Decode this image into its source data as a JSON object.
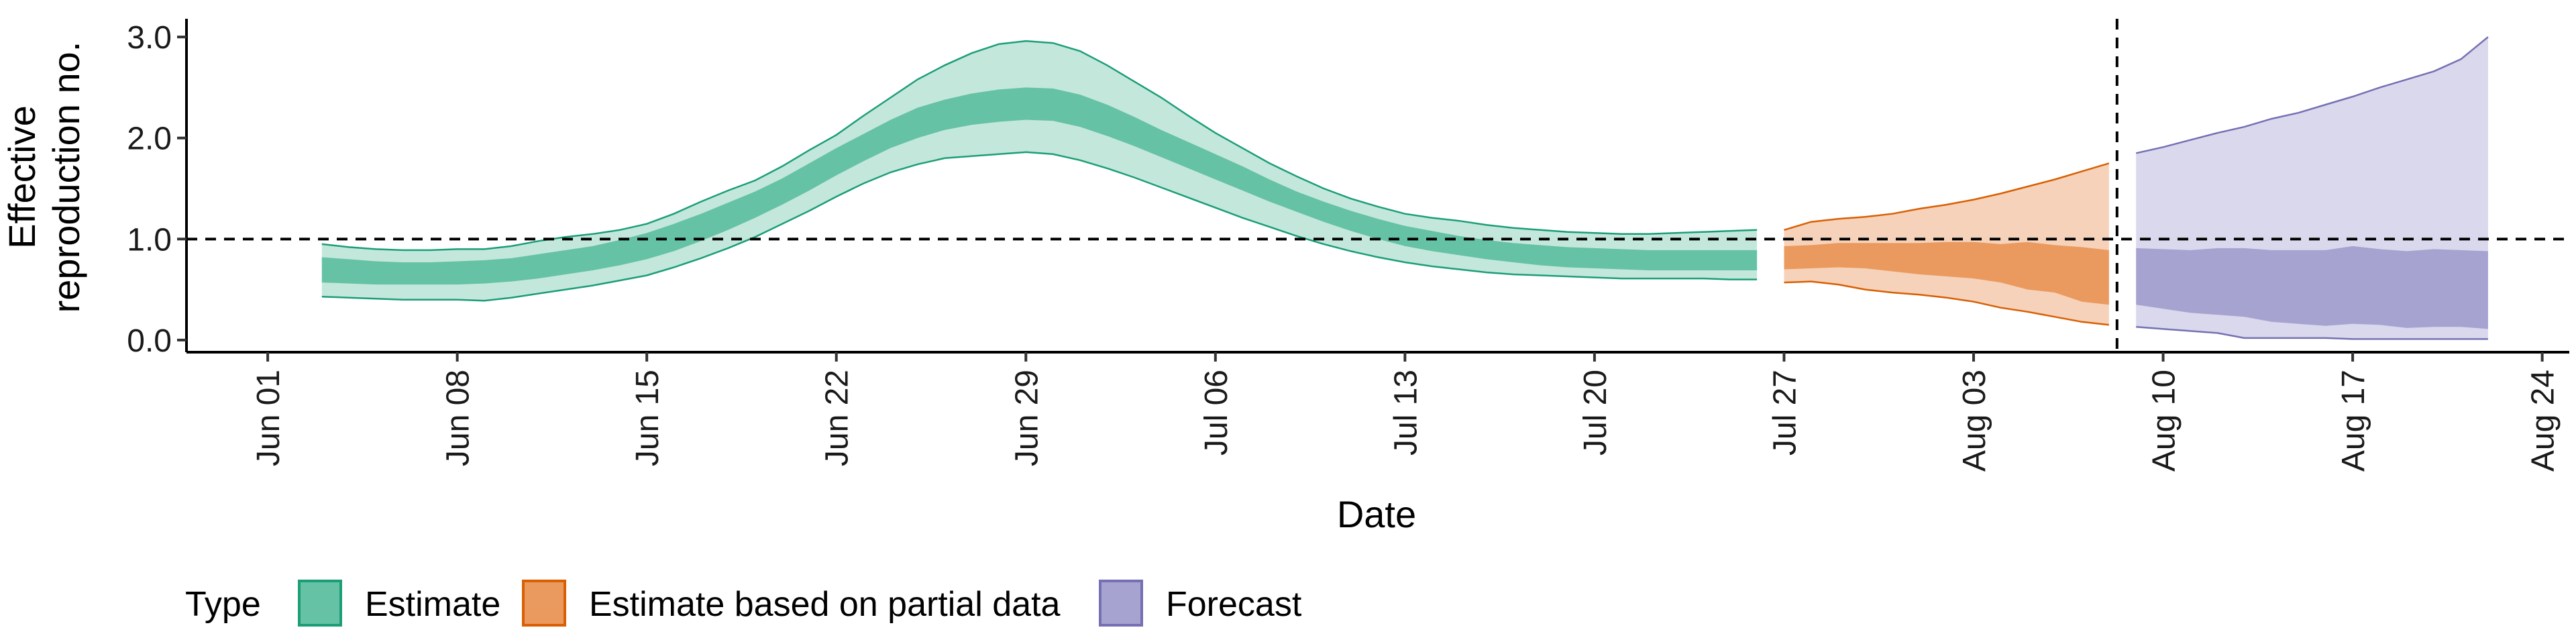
{
  "chart_data": {
    "type": "area",
    "xlabel": "Date",
    "ylabel_lines": [
      "Effective",
      "reproduction no."
    ],
    "y_ticks": [
      0.0,
      1.0,
      2.0,
      3.0
    ],
    "y_tick_labels": [
      "0.0",
      "1.0",
      "2.0",
      "3.0"
    ],
    "ylim": [
      -0.12,
      3.18
    ],
    "xlim": [
      "2020-05-29",
      "2020-08-25"
    ],
    "x_ticks": [
      "2020-06-01",
      "2020-06-08",
      "2020-06-15",
      "2020-06-22",
      "2020-06-29",
      "2020-07-06",
      "2020-07-13",
      "2020-07-20",
      "2020-07-27",
      "2020-08-03",
      "2020-08-10",
      "2020-08-17",
      "2020-08-24"
    ],
    "x_tick_labels": [
      "Jun 01",
      "Jun 08",
      "Jun 15",
      "Jun 22",
      "Jun 29",
      "Jul 06",
      "Jul 13",
      "Jul 20",
      "Jul 27",
      "Aug 03",
      "Aug 10",
      "Aug 17",
      "Aug 24"
    ],
    "reference_line_y": 1.0,
    "reference_line_x": "2020-08-08",
    "grid": false,
    "legend": {
      "title": "Type",
      "placement": "bottom",
      "entries": [
        "Estimate",
        "Estimate based on partial data",
        "Forecast"
      ]
    },
    "series": [
      {
        "name": "Estimate",
        "fill_color": "#66c2a5",
        "outer_color": "#c4e7dc",
        "line_color": "#1b9e77",
        "x": [
          "2020-06-03",
          "2020-06-04",
          "2020-06-05",
          "2020-06-06",
          "2020-06-07",
          "2020-06-08",
          "2020-06-09",
          "2020-06-10",
          "2020-06-11",
          "2020-06-12",
          "2020-06-13",
          "2020-06-14",
          "2020-06-15",
          "2020-06-16",
          "2020-06-17",
          "2020-06-18",
          "2020-06-19",
          "2020-06-20",
          "2020-06-21",
          "2020-06-22",
          "2020-06-23",
          "2020-06-24",
          "2020-06-25",
          "2020-06-26",
          "2020-06-27",
          "2020-06-28",
          "2020-06-29",
          "2020-06-30",
          "2020-07-01",
          "2020-07-02",
          "2020-07-03",
          "2020-07-04",
          "2020-07-05",
          "2020-07-06",
          "2020-07-07",
          "2020-07-08",
          "2020-07-09",
          "2020-07-10",
          "2020-07-11",
          "2020-07-12",
          "2020-07-13",
          "2020-07-14",
          "2020-07-15",
          "2020-07-16",
          "2020-07-17",
          "2020-07-18",
          "2020-07-19",
          "2020-07-20",
          "2020-07-21",
          "2020-07-22",
          "2020-07-23",
          "2020-07-24",
          "2020-07-25",
          "2020-07-26"
        ],
        "upper_90": [
          0.95,
          0.92,
          0.9,
          0.89,
          0.89,
          0.9,
          0.9,
          0.93,
          0.98,
          1.02,
          1.05,
          1.09,
          1.15,
          1.25,
          1.37,
          1.48,
          1.58,
          1.72,
          1.88,
          2.03,
          2.22,
          2.4,
          2.58,
          2.72,
          2.84,
          2.93,
          2.96,
          2.94,
          2.86,
          2.72,
          2.56,
          2.4,
          2.22,
          2.05,
          1.9,
          1.75,
          1.62,
          1.5,
          1.4,
          1.32,
          1.25,
          1.21,
          1.18,
          1.14,
          1.11,
          1.09,
          1.07,
          1.06,
          1.05,
          1.05,
          1.06,
          1.07,
          1.08,
          1.09
        ],
        "upper_50": [
          0.82,
          0.8,
          0.78,
          0.77,
          0.77,
          0.78,
          0.79,
          0.81,
          0.85,
          0.89,
          0.93,
          0.99,
          1.06,
          1.15,
          1.25,
          1.36,
          1.47,
          1.6,
          1.75,
          1.9,
          2.04,
          2.18,
          2.3,
          2.38,
          2.44,
          2.48,
          2.5,
          2.49,
          2.43,
          2.33,
          2.21,
          2.08,
          1.96,
          1.84,
          1.72,
          1.59,
          1.47,
          1.37,
          1.28,
          1.2,
          1.13,
          1.08,
          1.03,
          0.99,
          0.96,
          0.94,
          0.92,
          0.91,
          0.9,
          0.89,
          0.89,
          0.89,
          0.89,
          0.89
        ],
        "lower_50": [
          0.57,
          0.56,
          0.55,
          0.55,
          0.55,
          0.55,
          0.56,
          0.58,
          0.61,
          0.65,
          0.69,
          0.74,
          0.8,
          0.88,
          0.98,
          1.09,
          1.21,
          1.34,
          1.48,
          1.63,
          1.77,
          1.9,
          2.0,
          2.08,
          2.13,
          2.16,
          2.18,
          2.17,
          2.11,
          2.02,
          1.92,
          1.81,
          1.7,
          1.59,
          1.48,
          1.37,
          1.27,
          1.17,
          1.08,
          1.0,
          0.93,
          0.88,
          0.84,
          0.8,
          0.77,
          0.74,
          0.72,
          0.71,
          0.7,
          0.69,
          0.69,
          0.69,
          0.69,
          0.69
        ],
        "lower_90": [
          0.43,
          0.42,
          0.41,
          0.4,
          0.4,
          0.4,
          0.39,
          0.42,
          0.46,
          0.5,
          0.54,
          0.59,
          0.64,
          0.72,
          0.81,
          0.91,
          1.02,
          1.15,
          1.28,
          1.42,
          1.55,
          1.66,
          1.74,
          1.8,
          1.82,
          1.84,
          1.86,
          1.84,
          1.78,
          1.7,
          1.61,
          1.51,
          1.41,
          1.31,
          1.21,
          1.12,
          1.03,
          0.95,
          0.88,
          0.82,
          0.77,
          0.73,
          0.7,
          0.67,
          0.65,
          0.64,
          0.63,
          0.62,
          0.61,
          0.61,
          0.61,
          0.61,
          0.6,
          0.6
        ]
      },
      {
        "name": "Estimate based on partial data",
        "fill_color": "#eb9a5f",
        "outer_color": "#f5d2b9",
        "line_color": "#d95f02",
        "x": [
          "2020-07-27",
          "2020-07-28",
          "2020-07-29",
          "2020-07-30",
          "2020-07-31",
          "2020-08-01",
          "2020-08-02",
          "2020-08-03",
          "2020-08-04",
          "2020-08-05",
          "2020-08-06",
          "2020-08-07",
          "2020-08-08"
        ],
        "upper_90": [
          1.09,
          1.17,
          1.2,
          1.22,
          1.25,
          1.3,
          1.34,
          1.39,
          1.45,
          1.52,
          1.59,
          1.67,
          1.75
        ],
        "upper_50": [
          0.93,
          0.94,
          0.96,
          0.96,
          0.96,
          0.96,
          0.97,
          0.97,
          0.95,
          0.97,
          0.94,
          0.92,
          0.89
        ],
        "lower_50": [
          0.7,
          0.71,
          0.72,
          0.71,
          0.68,
          0.65,
          0.63,
          0.61,
          0.57,
          0.5,
          0.47,
          0.38,
          0.35
        ],
        "lower_90": [
          0.57,
          0.58,
          0.55,
          0.5,
          0.47,
          0.45,
          0.42,
          0.38,
          0.32,
          0.28,
          0.23,
          0.18,
          0.15
        ]
      },
      {
        "name": "Forecast",
        "fill_color": "#a7a3d1",
        "outer_color": "#d9d8ec",
        "line_color": "#7570b3",
        "x": [
          "2020-08-09",
          "2020-08-10",
          "2020-08-11",
          "2020-08-12",
          "2020-08-13",
          "2020-08-14",
          "2020-08-15",
          "2020-08-16",
          "2020-08-17",
          "2020-08-18",
          "2020-08-19",
          "2020-08-20",
          "2020-08-21",
          "2020-08-22"
        ],
        "upper_90": [
          1.85,
          1.91,
          1.98,
          2.05,
          2.11,
          2.19,
          2.25,
          2.33,
          2.41,
          2.5,
          2.58,
          2.66,
          2.78,
          3.0
        ],
        "upper_50": [
          0.91,
          0.9,
          0.89,
          0.91,
          0.91,
          0.89,
          0.89,
          0.89,
          0.93,
          0.9,
          0.88,
          0.9,
          0.89,
          0.88
        ],
        "lower_50": [
          0.35,
          0.31,
          0.27,
          0.25,
          0.23,
          0.18,
          0.16,
          0.14,
          0.16,
          0.15,
          0.12,
          0.13,
          0.13,
          0.11
        ],
        "lower_90": [
          0.13,
          0.11,
          0.09,
          0.07,
          0.02,
          0.02,
          0.02,
          0.02,
          0.01,
          0.01,
          0.01,
          0.01,
          0.01,
          0.01
        ]
      }
    ]
  }
}
